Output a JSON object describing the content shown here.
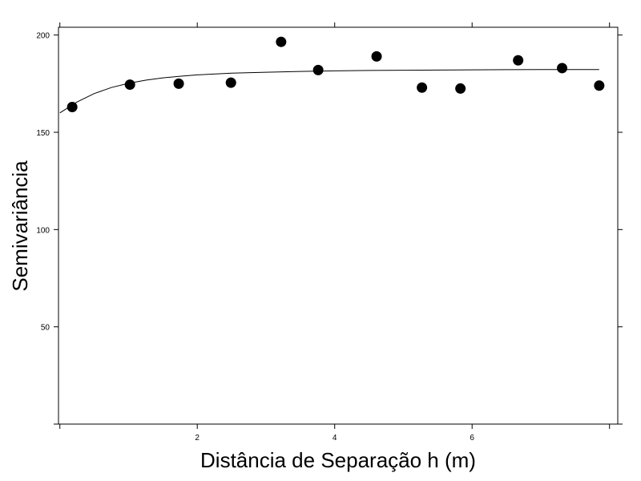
{
  "chart_data": {
    "type": "scatter",
    "title": "",
    "xlabel": "Distância de Separação h (m)",
    "ylabel": "Semivariância",
    "xlim": [
      -0.02,
      8.12
    ],
    "ylim": [
      0,
      204
    ],
    "x_ticks": [
      0,
      2,
      4,
      6,
      8
    ],
    "x_tick_labels": [
      "",
      "2",
      "4",
      "6",
      ""
    ],
    "y_ticks": [
      0,
      50,
      100,
      150,
      200
    ],
    "y_tick_labels": [
      "",
      "50",
      "100",
      "150",
      "200"
    ],
    "grid": false,
    "series": [
      {
        "type": "scatter",
        "x": [
          0.18,
          1.02,
          1.73,
          2.49,
          3.22,
          3.76,
          4.61,
          5.27,
          5.83,
          6.67,
          7.31,
          7.85
        ],
        "y": [
          163,
          174.5,
          175,
          175.5,
          196.5,
          182,
          189,
          173,
          172.5,
          187,
          183,
          174
        ]
      },
      {
        "type": "line",
        "x": [
          0,
          0.25,
          0.5,
          0.75,
          1.0,
          1.25,
          1.5,
          1.75,
          2.0,
          2.5,
          3.0,
          3.5,
          4.0,
          4.5,
          5.0,
          5.5,
          6.0,
          6.5,
          7.0,
          7.5,
          7.85
        ],
        "y": [
          160,
          165.6,
          169.9,
          173,
          175.2,
          176.8,
          178,
          178.8,
          179.5,
          180.4,
          180.9,
          181.3,
          181.6,
          181.8,
          181.9,
          182,
          182.1,
          182.2,
          182.3,
          182.3,
          182.3
        ]
      }
    ]
  }
}
